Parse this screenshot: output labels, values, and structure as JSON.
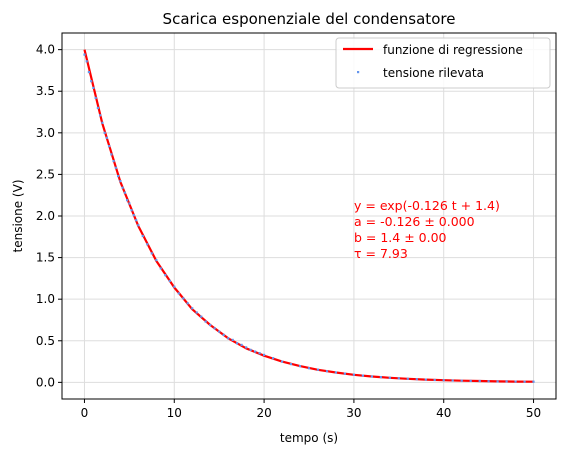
{
  "chart_data": {
    "type": "scatter",
    "title": "Scarica esponenziale del condensatore",
    "xlabel": "tempo (s)",
    "ylabel": "tensione (V)",
    "xlim": [
      -2.5,
      52.5
    ],
    "ylim": [
      -0.2,
      4.2
    ],
    "xticks": [
      0,
      10,
      20,
      30,
      40,
      50
    ],
    "yticks": [
      0.0,
      0.5,
      1.0,
      1.5,
      2.0,
      2.5,
      3.0,
      3.5,
      4.0
    ],
    "xtick_labels": [
      "0",
      "10",
      "20",
      "30",
      "40",
      "50"
    ],
    "ytick_labels": [
      "0.0",
      "0.5",
      "1.0",
      "1.5",
      "2.0",
      "2.5",
      "3.0",
      "3.5",
      "4.0"
    ],
    "grid": true,
    "legend_position": "top-right",
    "series": [
      {
        "name": "funzione di regressione",
        "kind": "line",
        "color": "#ff0000",
        "x": [
          0,
          2,
          4,
          6,
          8,
          10,
          12,
          14,
          16,
          18,
          20,
          22,
          24,
          26,
          28,
          30,
          32,
          34,
          36,
          38,
          40,
          42,
          44,
          46,
          48,
          50
        ],
        "y": [
          4.0,
          3.11,
          2.41,
          1.88,
          1.46,
          1.14,
          0.88,
          0.69,
          0.53,
          0.41,
          0.32,
          0.25,
          0.195,
          0.151,
          0.118,
          0.091,
          0.071,
          0.055,
          0.043,
          0.033,
          0.026,
          0.02,
          0.016,
          0.012,
          0.0095,
          0.0074
        ]
      },
      {
        "name": "tensione rilevata",
        "kind": "scatter",
        "color": "#6495ed",
        "x": [
          0,
          0.25,
          0.5,
          0.75,
          1,
          1.25,
          1.5,
          1.75,
          2,
          2.25,
          2.5,
          2.75,
          3,
          3.25,
          3.5,
          3.75,
          4,
          4.25,
          4.5,
          4.75,
          5,
          5.25,
          5.5,
          5.75,
          6,
          6.5,
          7,
          7.5,
          8,
          8.5,
          9,
          9.5,
          10,
          10.5,
          11,
          11.5,
          12,
          12.5,
          13,
          13.5,
          14,
          14.5,
          15,
          15.5,
          16,
          16.5,
          17,
          17.5,
          18,
          18.5,
          19,
          19.5,
          20,
          21,
          22,
          23,
          24,
          25,
          26,
          27,
          28,
          29,
          30,
          31,
          32,
          33,
          34,
          35,
          36,
          37,
          38,
          39,
          40,
          41,
          42,
          43,
          44,
          45,
          46,
          47,
          48,
          49,
          50
        ],
        "y": [
          3.94,
          3.86,
          3.73,
          3.62,
          3.54,
          3.42,
          3.3,
          3.21,
          3.12,
          3.0,
          2.94,
          2.84,
          2.74,
          2.66,
          2.58,
          2.48,
          2.42,
          2.34,
          2.28,
          2.19,
          2.15,
          2.07,
          2.01,
          1.95,
          1.89,
          1.76,
          1.66,
          1.55,
          1.47,
          1.37,
          1.29,
          1.22,
          1.15,
          1.07,
          1.01,
          0.95,
          0.89,
          0.84,
          0.79,
          0.73,
          0.69,
          0.65,
          0.61,
          0.57,
          0.53,
          0.51,
          0.47,
          0.45,
          0.42,
          0.39,
          0.37,
          0.35,
          0.33,
          0.29,
          0.25,
          0.22,
          0.196,
          0.17,
          0.152,
          0.134,
          0.118,
          0.104,
          0.092,
          0.081,
          0.071,
          0.063,
          0.055,
          0.049,
          0.043,
          0.038,
          0.033,
          0.029,
          0.026,
          0.023,
          0.02,
          0.018,
          0.016,
          0.014,
          0.012,
          0.011,
          0.0095,
          0.0084,
          0.0074
        ]
      }
    ],
    "annotation": {
      "color": "#ff0000",
      "lines": [
        "y = exp(-0.126 t +  1.4)",
        "a = -0.126 ±  0.000",
        "b =  1.4 ± 0.00",
        "τ = 7.93"
      ]
    }
  }
}
